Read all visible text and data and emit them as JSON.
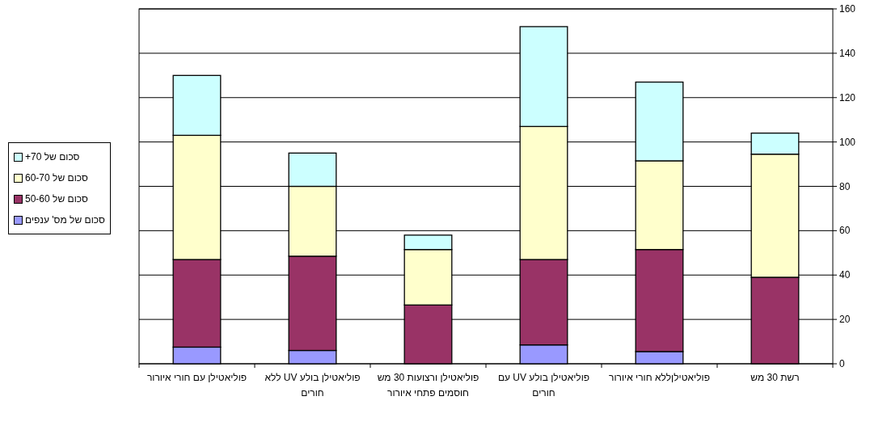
{
  "chart_data": {
    "type": "bar",
    "stacked": true,
    "categories": [
      "פוליאטילן עם חורי איורור",
      "פוליאטילן בולע UV ללא חורים",
      "פוליאטילן ורצועות 30 מש חוסמים פתחי איורור",
      "פוליאטילן בולע UV עם חורים",
      "פוליאטילןללא חורי איורור",
      "רשת 30 מש"
    ],
    "series": [
      {
        "name": "סכום של מס' ענפים",
        "color": "#9999ff",
        "values": [
          7.5,
          6,
          0,
          8.5,
          5.5,
          0
        ]
      },
      {
        "name": "סכום של 50-60",
        "color": "#993366",
        "values": [
          39.5,
          42.5,
          26.5,
          38.5,
          46,
          39
        ]
      },
      {
        "name": "סכום של 60-70",
        "color": "#ffffcc",
        "values": [
          56,
          31.5,
          25,
          60,
          40,
          55.5
        ]
      },
      {
        "name": "סכום של 70+",
        "color": "#ccffff",
        "values": [
          27,
          15,
          6.5,
          45,
          35.5,
          9.5
        ]
      }
    ],
    "ylim": [
      0,
      160
    ],
    "yticks": [
      0,
      20,
      40,
      60,
      80,
      100,
      120,
      140,
      160
    ],
    "grid": "y",
    "legend": "left"
  }
}
